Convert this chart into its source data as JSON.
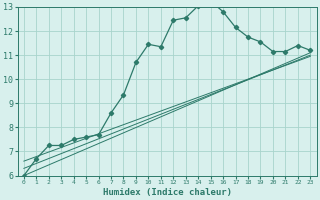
{
  "xlabel": "Humidex (Indice chaleur)",
  "bg_color": "#d8f0ed",
  "grid_color": "#a8d4cc",
  "line_color": "#2d7a6a",
  "xlim": [
    -0.5,
    23.5
  ],
  "ylim": [
    6,
    13
  ],
  "xtick_labels": [
    "0",
    "1",
    "2",
    "3",
    "4",
    "5",
    "6",
    "7",
    "8",
    "9",
    "10",
    "11",
    "12",
    "13",
    "14",
    "15",
    "16",
    "17",
    "18",
    "19",
    "20",
    "21",
    "22",
    "23"
  ],
  "xtick_vals": [
    0,
    1,
    2,
    3,
    4,
    5,
    6,
    7,
    8,
    9,
    10,
    11,
    12,
    13,
    14,
    15,
    16,
    17,
    18,
    19,
    20,
    21,
    22,
    23
  ],
  "yticks": [
    6,
    7,
    8,
    9,
    10,
    11,
    12,
    13
  ],
  "main_x": [
    0,
    1,
    2,
    3,
    4,
    5,
    6,
    7,
    8,
    9,
    10,
    11,
    12,
    13,
    14,
    15,
    16,
    17,
    18,
    19,
    20,
    21,
    22,
    23
  ],
  "main_y": [
    6.0,
    6.7,
    7.25,
    7.25,
    7.5,
    7.6,
    7.7,
    8.6,
    9.35,
    10.7,
    11.45,
    11.35,
    12.45,
    12.55,
    13.05,
    13.25,
    12.8,
    12.15,
    11.75,
    11.55,
    11.15,
    11.15,
    11.4,
    11.2
  ],
  "line1_x": [
    0,
    23
  ],
  "line1_y": [
    6.0,
    11.1
  ],
  "line2_x": [
    0,
    23
  ],
  "line2_y": [
    6.3,
    11.0
  ],
  "line3_x": [
    0,
    23
  ],
  "line3_y": [
    6.6,
    10.95
  ]
}
